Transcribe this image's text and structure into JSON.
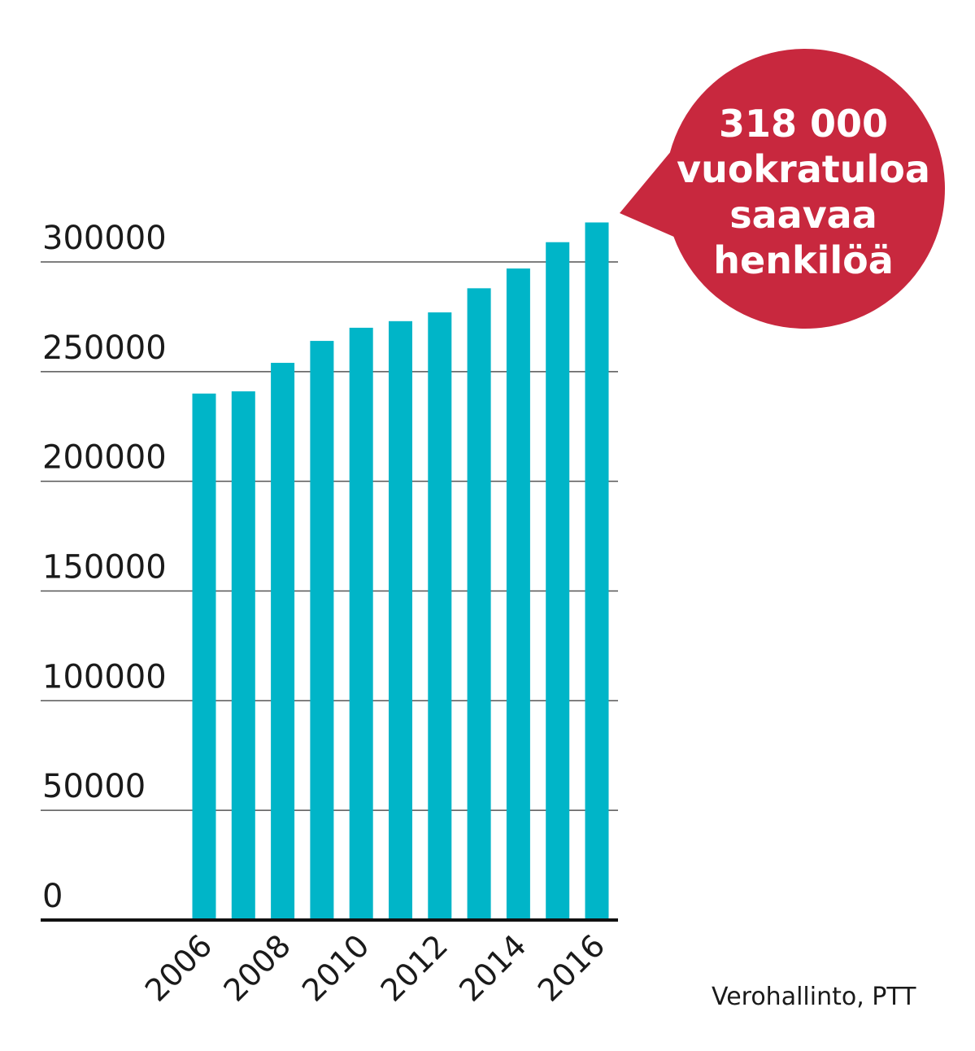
{
  "chart_data": {
    "type": "bar",
    "categories": [
      "2006",
      "2007",
      "2008",
      "2009",
      "2010",
      "2011",
      "2012",
      "2013",
      "2014",
      "2015",
      "2016"
    ],
    "values": [
      240000,
      241000,
      254000,
      264000,
      270000,
      273000,
      277000,
      288000,
      297000,
      309000,
      318000
    ],
    "x_tick_labels": [
      "2006",
      "2008",
      "2010",
      "2012",
      "2014",
      "2016"
    ],
    "y_ticks": [
      0,
      50000,
      100000,
      150000,
      200000,
      250000,
      300000
    ],
    "ylim": [
      0,
      300000
    ],
    "grid": true,
    "bar_color": "#00b5c8",
    "title": "",
    "xlabel": "",
    "ylabel": ""
  },
  "callout": {
    "lines": [
      "318 000",
      "vuokratuloa",
      "saavaa",
      "henkilöä"
    ],
    "color": "#c8283e",
    "text_color": "#ffffff"
  },
  "source": "Verohallinto, PTT",
  "colors": {
    "grid": "#555555",
    "axis": "#111111",
    "text": "#1a1a1a"
  }
}
